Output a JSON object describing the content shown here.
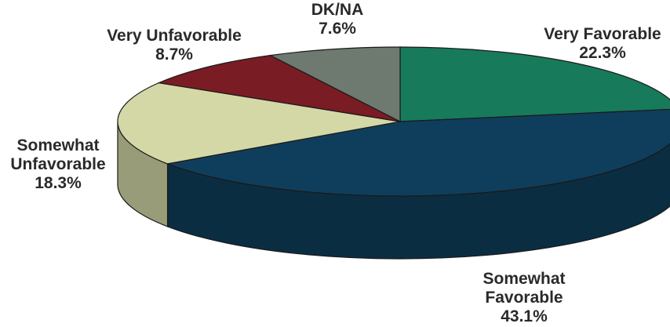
{
  "chart_data": {
    "type": "pie",
    "style": "3d",
    "title": "",
    "slices": [
      {
        "label": "Very Favorable",
        "value": 22.3,
        "display": "22.3%",
        "color": "#177a5a"
      },
      {
        "label": "Somewhat Favorable",
        "value": 43.1,
        "display": "43.1%",
        "color": "#0f3e5c"
      },
      {
        "label": "Somewhat Unfavorable",
        "value": 18.3,
        "display": "18.3%",
        "color": "#d4d8a6"
      },
      {
        "label": "Very Unfavorable",
        "value": 8.7,
        "display": "8.7%",
        "color": "#7a1c24"
      },
      {
        "label": "DK/NA",
        "value": 7.6,
        "display": "7.6%",
        "color": "#6e7a70"
      }
    ]
  }
}
